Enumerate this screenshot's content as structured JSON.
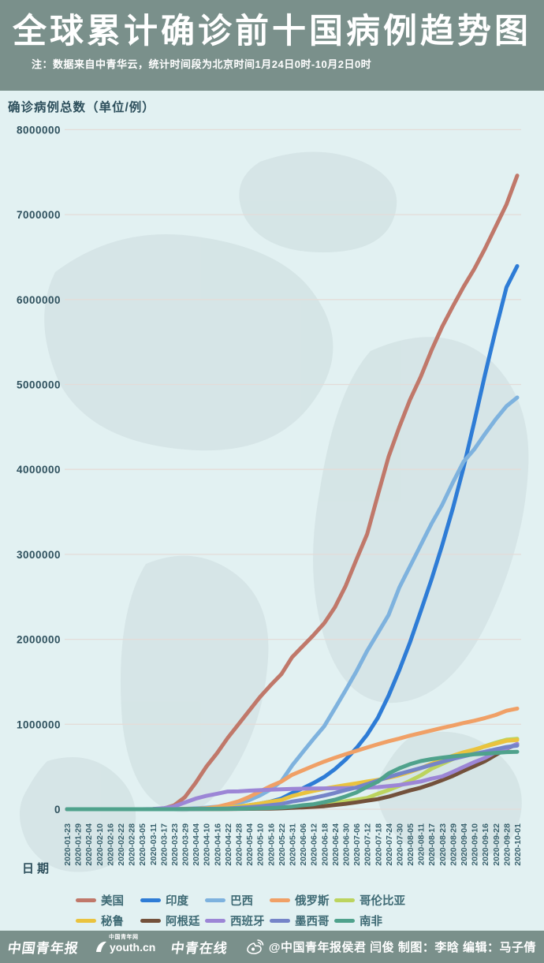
{
  "header": {
    "title": "全球累计确诊前十国病例趋势图",
    "note": "注：数据来自中青华云，统计时间段为北京时间1月24日0时-10月2日0时"
  },
  "chart_data": {
    "type": "line",
    "title": "全球累计确诊前十国病例趋势图",
    "ylabel": "确诊病例总数（单位/例）",
    "xlabel": "日期",
    "ylim": [
      0,
      8000000
    ],
    "ytick_step": 1000000,
    "yticks": [
      0,
      1000000,
      2000000,
      3000000,
      4000000,
      5000000,
      6000000,
      7000000,
      8000000
    ],
    "grid": true,
    "legend_position": "bottom",
    "x": [
      "2020-01-23",
      "2020-01-29",
      "2020-02-04",
      "2020-02-10",
      "2020-02-16",
      "2020-02-22",
      "2020-02-28",
      "2020-03-05",
      "2020-03-11",
      "2020-03-17",
      "2020-03-23",
      "2020-03-29",
      "2020-04-04",
      "2020-04-10",
      "2020-04-16",
      "2020-04-22",
      "2020-04-28",
      "2020-05-04",
      "2020-05-10",
      "2020-05-16",
      "2020-05-22",
      "2020-05-31",
      "2020-06-06",
      "2020-06-12",
      "2020-06-18",
      "2020-06-24",
      "2020-06-30",
      "2020-07-06",
      "2020-07-12",
      "2020-07-18",
      "2020-07-24",
      "2020-07-30",
      "2020-08-05",
      "2020-08-11",
      "2020-08-17",
      "2020-08-23",
      "2020-08-29",
      "2020-09-04",
      "2020-09-10",
      "2020-09-16",
      "2020-09-22",
      "2020-09-28",
      "2020-10-01"
    ],
    "series": [
      {
        "name": "美国",
        "color": "#c0786a",
        "values": [
          0,
          0,
          11,
          12,
          15,
          35,
          60,
          220,
          1300,
          6300,
          46000,
          141000,
          310000,
          500000,
          660000,
          840000,
          1000000,
          1160000,
          1320000,
          1460000,
          1590000,
          1790000,
          1920000,
          2050000,
          2190000,
          2380000,
          2630000,
          2940000,
          3240000,
          3700000,
          4150000,
          4500000,
          4820000,
          5090000,
          5400000,
          5680000,
          5920000,
          6150000,
          6360000,
          6600000,
          6860000,
          7120000,
          7460000
        ]
      },
      {
        "name": "印度",
        "color": "#2e7cd6",
        "values": [
          0,
          0,
          3,
          3,
          3,
          3,
          3,
          30,
          62,
          140,
          500,
          1000,
          3000,
          7000,
          13000,
          21000,
          31000,
          46000,
          67000,
          90000,
          125000,
          190000,
          246000,
          308000,
          380000,
          473000,
          585000,
          720000,
          878000,
          1077000,
          1337000,
          1638000,
          1964000,
          2329000,
          2702000,
          3106000,
          3542000,
          4023000,
          4562000,
          5118000,
          5646000,
          6145000,
          6394000
        ]
      },
      {
        "name": "巴西",
        "color": "#7eb2de",
        "values": [
          0,
          0,
          0,
          0,
          0,
          0,
          1,
          4,
          52,
          290,
          1900,
          4300,
          10000,
          19000,
          30000,
          45000,
          72000,
          107000,
          162000,
          233000,
          330000,
          514000,
          672000,
          828000,
          978000,
          1188000,
          1402000,
          1623000,
          1864000,
          2074000,
          2287000,
          2610000,
          2859000,
          3109000,
          3359000,
          3582000,
          3846000,
          4091000,
          4238000,
          4419000,
          4591000,
          4745000,
          4847000
        ]
      },
      {
        "name": "俄罗斯",
        "color": "#f0a066",
        "values": [
          0,
          0,
          2,
          2,
          2,
          2,
          2,
          4,
          20,
          114,
          438,
          1534,
          4700,
          12000,
          28000,
          58000,
          93000,
          145000,
          209000,
          272000,
          326000,
          405000,
          458000,
          511000,
          561000,
          606000,
          647000,
          687000,
          727000,
          765000,
          800000,
          832000,
          866000,
          897000,
          927000,
          957000,
          985000,
          1015000,
          1042000,
          1073000,
          1110000,
          1159000,
          1185000
        ]
      },
      {
        "name": "哥伦比亚",
        "color": "#bcd45e",
        "values": [
          0,
          0,
          0,
          0,
          0,
          0,
          0,
          0,
          3,
          65,
          277,
          702,
          1400,
          2500,
          3400,
          4400,
          5600,
          7700,
          10500,
          14200,
          18300,
          29000,
          36700,
          43800,
          57000,
          74000,
          95000,
          113000,
          133000,
          182000,
          226000,
          276000,
          334000,
          397000,
          476000,
          533000,
          590000,
          650000,
          694000,
          743000,
          784000,
          818000,
          829000
        ]
      },
      {
        "name": "秘鲁",
        "color": "#eac33e",
        "values": [
          0,
          0,
          0,
          0,
          0,
          0,
          0,
          0,
          11,
          117,
          395,
          852,
          2000,
          5900,
          12500,
          19300,
          31200,
          47400,
          67300,
          88500,
          109000,
          155000,
          187000,
          215000,
          241000,
          264000,
          285000,
          305000,
          326000,
          345000,
          371000,
          400000,
          439000,
          483000,
          535000,
          586000,
          629000,
          670000,
          702000,
          739000,
          772000,
          805000,
          815000
        ]
      },
      {
        "name": "阿根廷",
        "color": "#73513b",
        "values": [
          0,
          0,
          0,
          0,
          0,
          0,
          0,
          1,
          19,
          65,
          266,
          745,
          1450,
          1950,
          2570,
          3190,
          4120,
          4900,
          5780,
          7480,
          9900,
          16200,
          21000,
          28000,
          35500,
          50000,
          64500,
          80400,
          100000,
          119000,
          148000,
          185000,
          221000,
          253000,
          294000,
          342000,
          392000,
          451000,
          508000,
          565000,
          640000,
          712000,
          765000
        ]
      },
      {
        "name": "西班牙",
        "color": "#9c86d6",
        "values": [
          0,
          0,
          0,
          2,
          2,
          2,
          32,
          200,
          2200,
          11200,
          33100,
          78800,
          124000,
          157000,
          182000,
          208000,
          210000,
          218000,
          224000,
          230000,
          234000,
          239000,
          241000,
          243000,
          245000,
          247000,
          249000,
          252000,
          254000,
          260000,
          272000,
          285000,
          305000,
          326000,
          359000,
          386000,
          439000,
          498000,
          554000,
          604000,
          671000,
          716000,
          769000
        ]
      },
      {
        "name": "墨西哥",
        "color": "#7584c8",
        "values": [
          0,
          0,
          0,
          0,
          0,
          0,
          0,
          1,
          8,
          82,
          367,
          848,
          1890,
          3440,
          5850,
          9500,
          16000,
          23500,
          33500,
          47100,
          62500,
          90000,
          110000,
          134000,
          161000,
          191000,
          226000,
          256000,
          295000,
          338000,
          378000,
          416000,
          450000,
          485000,
          522000,
          557000,
          592000,
          623000,
          652000,
          676000,
          705000,
          733000,
          748000
        ]
      },
      {
        "name": "南非",
        "color": "#4fa28c",
        "values": [
          0,
          0,
          0,
          0,
          0,
          0,
          0,
          0,
          13,
          62,
          402,
          1187,
          1585,
          2000,
          2500,
          3600,
          4990,
          7220,
          10000,
          14355,
          19137,
          30967,
          45973,
          58568,
          83890,
          111796,
          151209,
          196750,
          264184,
          324221,
          421996,
          482169,
          529877,
          566109,
          589886,
          607045,
          622551,
          633015,
          646398,
          653444,
          663282,
          672572,
          676084
        ]
      }
    ]
  },
  "footer": {
    "logos": [
      {
        "text": "中国青年报"
      },
      {
        "text": "youth.cn",
        "badge": "中国青年网"
      },
      {
        "text": "中青在线"
      }
    ],
    "credit": "@中国青年报侯君 闫俊 制图：李晗 编辑：马子倩"
  },
  "colors": {
    "header_bg": "#7a908b",
    "chart_bg": "#e2f1f2",
    "grid": "#e4dcd8",
    "axis_text": "#2f515e",
    "tick_text": "#39616d"
  }
}
